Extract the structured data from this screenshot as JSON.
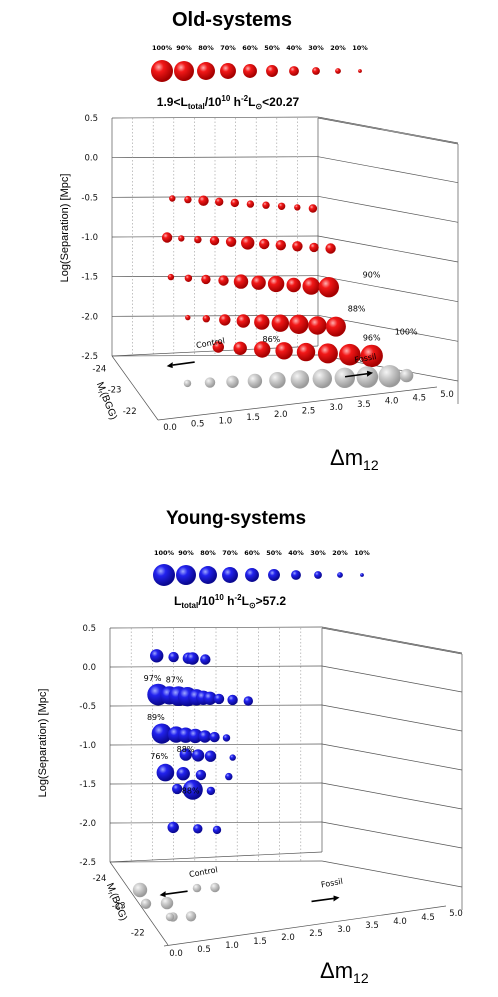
{
  "colors": {
    "old": "#e30000",
    "young": "#1a14e6",
    "fossil": "#bdbdbd"
  },
  "chart_data": [
    {
      "type": "scatter",
      "panel": "old",
      "title": "Old-systems",
      "subtitle": {
        "pre": "1.9<L",
        "sub": "total",
        "mid": "/10",
        "sup": "10",
        "mid2": " h",
        "sup2": "-2",
        "mid3": "L",
        "sub2": "⊙",
        "post": "<20.27"
      },
      "size_legend": [
        "100%",
        "90%",
        "80%",
        "70%",
        "60%",
        "50%",
        "40%",
        "30%",
        "20%",
        "10%"
      ],
      "xlabel": "Δm",
      "xlabel_sub": "12",
      "ylabel": "Log(Separation) [Mpc]",
      "zlabel": "M",
      "zlabel_sub": "r",
      "zlabel_post": "(BGG)",
      "xticks": [
        "0.0",
        "0.5",
        "1.0",
        "1.5",
        "2.0",
        "2.5",
        "3.0",
        "3.5",
        "4.0",
        "4.5",
        "5.0"
      ],
      "yticks": [
        "0.5",
        "0.0",
        "-0.5",
        "-1.0",
        "-1.5",
        "-2.0",
        "-2.5"
      ],
      "zticks": [
        "-24",
        "-23",
        "-22"
      ],
      "xlim": [
        0,
        5
      ],
      "ylim": [
        -2.5,
        0.5
      ],
      "annotations": [
        {
          "text": "Control",
          "x": 0.5,
          "y": -2.38,
          "arrow": "left"
        },
        {
          "text": "Fossil",
          "x": 3.35,
          "y": -2.45,
          "arrow": "right"
        },
        {
          "text": "90%",
          "x": 4.25,
          "y": -1.34
        },
        {
          "text": "88%",
          "x": 3.7,
          "y": -1.79
        },
        {
          "text": "86%",
          "x": 1.9,
          "y": -2.25
        },
        {
          "text": "96%",
          "x": 3.8,
          "y": -2.15
        },
        {
          "text": "100%",
          "x": 4.5,
          "y": -2.05
        }
      ],
      "series": [
        {
          "y": -0.5,
          "points": [
            {
              "x": 0.35,
              "s": 20
            },
            {
              "x": 0.7,
              "s": 25
            },
            {
              "x": 1.05,
              "s": 40
            },
            {
              "x": 1.4,
              "s": 30
            },
            {
              "x": 1.75,
              "s": 30
            },
            {
              "x": 2.1,
              "s": 25
            },
            {
              "x": 2.45,
              "s": 25
            },
            {
              "x": 2.8,
              "s": 25
            },
            {
              "x": 3.15,
              "s": 20
            },
            {
              "x": 3.5,
              "s": 30
            }
          ]
        },
        {
          "y": -1.0,
          "points": [
            {
              "x": 0.15,
              "s": 40
            },
            {
              "x": 0.45,
              "s": 20
            },
            {
              "x": 0.8,
              "s": 25
            },
            {
              "x": 1.15,
              "s": 35
            },
            {
              "x": 1.5,
              "s": 40
            },
            {
              "x": 1.85,
              "s": 55
            },
            {
              "x": 2.2,
              "s": 40
            },
            {
              "x": 2.55,
              "s": 40
            },
            {
              "x": 2.9,
              "s": 40
            },
            {
              "x": 3.25,
              "s": 35
            },
            {
              "x": 3.6,
              "s": 40
            }
          ]
        },
        {
          "y": -1.5,
          "points": [
            {
              "x": 0.15,
              "s": 20
            },
            {
              "x": 0.5,
              "s": 25
            },
            {
              "x": 0.85,
              "s": 35
            },
            {
              "x": 1.2,
              "s": 40
            },
            {
              "x": 1.55,
              "s": 60
            },
            {
              "x": 1.9,
              "s": 60
            },
            {
              "x": 2.25,
              "s": 70
            },
            {
              "x": 2.6,
              "s": 60
            },
            {
              "x": 2.95,
              "s": 75
            },
            {
              "x": 3.3,
              "s": 90
            }
          ]
        },
        {
          "y": -2.0,
          "points": [
            {
              "x": 0.4,
              "s": 15
            },
            {
              "x": 0.75,
              "s": 25
            },
            {
              "x": 1.1,
              "s": 45
            },
            {
              "x": 1.45,
              "s": 55
            },
            {
              "x": 1.8,
              "s": 65
            },
            {
              "x": 2.15,
              "s": 75
            },
            {
              "x": 2.5,
              "s": 85
            },
            {
              "x": 2.85,
              "s": 80
            },
            {
              "x": 3.2,
              "s": 88
            }
          ]
        },
        {
          "y": -2.35,
          "points": [
            {
              "x": 0.9,
              "s": 45
            },
            {
              "x": 1.3,
              "s": 55
            },
            {
              "x": 1.7,
              "s": 70
            },
            {
              "x": 2.1,
              "s": 75
            },
            {
              "x": 2.5,
              "s": 80
            },
            {
              "x": 2.9,
              "s": 88
            },
            {
              "x": 3.3,
              "s": 96
            },
            {
              "x": 3.7,
              "s": 100
            }
          ]
        },
        {
          "y": -2.6,
          "fossil": true,
          "points": [
            {
              "x": 0.3,
              "s": 25
            },
            {
              "x": 0.7,
              "s": 40
            },
            {
              "x": 1.1,
              "s": 50
            },
            {
              "x": 1.5,
              "s": 60
            },
            {
              "x": 1.9,
              "s": 70
            },
            {
              "x": 2.3,
              "s": 80
            },
            {
              "x": 2.7,
              "s": 85
            },
            {
              "x": 3.1,
              "s": 90
            },
            {
              "x": 3.5,
              "s": 96
            },
            {
              "x": 3.9,
              "s": 100
            },
            {
              "x": 4.2,
              "s": 55
            }
          ]
        }
      ]
    },
    {
      "type": "scatter",
      "panel": "young",
      "title": "Young-systems",
      "subtitle": {
        "pre": "L",
        "sub": "total",
        "mid": "/10",
        "sup": "10",
        "mid2": " h",
        "sup2": "-2",
        "mid3": "L",
        "sub2": "⊙",
        "post": ">57.2"
      },
      "size_legend": [
        "100%",
        "90%",
        "80%",
        "70%",
        "60%",
        "50%",
        "40%",
        "30%",
        "20%",
        "10%"
      ],
      "xlabel": "Δm",
      "xlabel_sub": "12",
      "ylabel": "Log(Separation) [Mpc]",
      "zlabel": "M",
      "zlabel_sub": "r",
      "zlabel_post": "(BGG)",
      "xticks": [
        "0.0",
        "0.5",
        "1.0",
        "1.5",
        "2.0",
        "2.5",
        "3.0",
        "3.5",
        "4.0",
        "4.5",
        "5.0"
      ],
      "yticks": [
        "0.5",
        "0.0",
        "-0.5",
        "-1.0",
        "-1.5",
        "-2.0",
        "-2.5"
      ],
      "zticks": [
        "-24",
        "-23",
        "-22"
      ],
      "xlim": [
        0,
        5
      ],
      "ylim": [
        -2.5,
        0.5
      ],
      "annotations": [
        {
          "text": "Control",
          "x": 0.35,
          "y": -2.68,
          "arrow": "left"
        },
        {
          "text": "Fossil",
          "x": 2.6,
          "y": -2.72,
          "arrow": "right"
        },
        {
          "text": "97%",
          "x": 0.0,
          "y": -0.18
        },
        {
          "text": "87%",
          "x": 0.5,
          "y": -0.18
        },
        {
          "text": "89%",
          "x": 0.0,
          "y": -0.68
        },
        {
          "text": "88%",
          "x": 0.55,
          "y": -1.07
        },
        {
          "text": "76%",
          "x": 0.0,
          "y": -1.18
        },
        {
          "text": "88%",
          "x": 0.55,
          "y": -1.6
        }
      ],
      "series": [
        {
          "y": 0.15,
          "points": [
            {
              "x": 0.15,
              "s": 55
            },
            {
              "x": 0.55,
              "s": 40
            },
            {
              "x": 0.9,
              "s": 45
            },
            {
              "x": 1.0,
              "s": 50
            },
            {
              "x": 1.3,
              "s": 40
            }
          ]
        },
        {
          "y": -0.35,
          "points": [
            {
              "x": 0.1,
              "s": 97
            },
            {
              "x": 0.35,
              "s": 80
            },
            {
              "x": 0.55,
              "s": 87
            },
            {
              "x": 0.75,
              "s": 85
            },
            {
              "x": 0.95,
              "s": 70
            },
            {
              "x": 1.1,
              "s": 60
            },
            {
              "x": 1.25,
              "s": 55
            },
            {
              "x": 1.45,
              "s": 40
            },
            {
              "x": 1.75,
              "s": 40
            },
            {
              "x": 2.1,
              "s": 35
            }
          ]
        },
        {
          "y": -0.85,
          "points": [
            {
              "x": 0.1,
              "s": 89
            },
            {
              "x": 0.4,
              "s": 70
            },
            {
              "x": 0.6,
              "s": 65
            },
            {
              "x": 0.8,
              "s": 60
            },
            {
              "x": 1.0,
              "s": 50
            },
            {
              "x": 1.2,
              "s": 40
            },
            {
              "x": 1.45,
              "s": 25
            }
          ]
        },
        {
          "y": -1.1,
          "points": [
            {
              "x": 0.55,
              "s": 50
            },
            {
              "x": 0.8,
              "s": 50
            },
            {
              "x": 1.05,
              "s": 45
            },
            {
              "x": 1.5,
              "s": 20
            }
          ]
        },
        {
          "y": -1.35,
          "points": [
            {
              "x": 0.1,
              "s": 76
            },
            {
              "x": 0.45,
              "s": 55
            },
            {
              "x": 0.8,
              "s": 40
            },
            {
              "x": 1.35,
              "s": 25
            }
          ]
        },
        {
          "y": -1.55,
          "points": [
            {
              "x": 0.3,
              "s": 40
            },
            {
              "x": 0.6,
              "s": 88
            },
            {
              "x": 0.95,
              "s": 30
            }
          ]
        },
        {
          "y": -2.05,
          "points": [
            {
              "x": 0.15,
              "s": 45
            },
            {
              "x": 0.6,
              "s": 35
            },
            {
              "x": 0.95,
              "s": 30
            }
          ]
        },
        {
          "y": -2.5,
          "fossil": true,
          "points": [
            {
              "x": 0.0,
              "s": 60
            },
            {
              "x": 0.45,
              "s": 50
            },
            {
              "x": 0.85,
              "s": 40
            },
            {
              "x": 1.25,
              "s": 35
            },
            {
              "x": 0.1,
              "s": 40
            },
            {
              "x": 0.55,
              "s": 35
            },
            {
              "x": 0.95,
              "s": 30
            },
            {
              "x": 0.1,
              "s": 35
            },
            {
              "x": 0.5,
              "s": 30
            }
          ]
        }
      ]
    }
  ]
}
